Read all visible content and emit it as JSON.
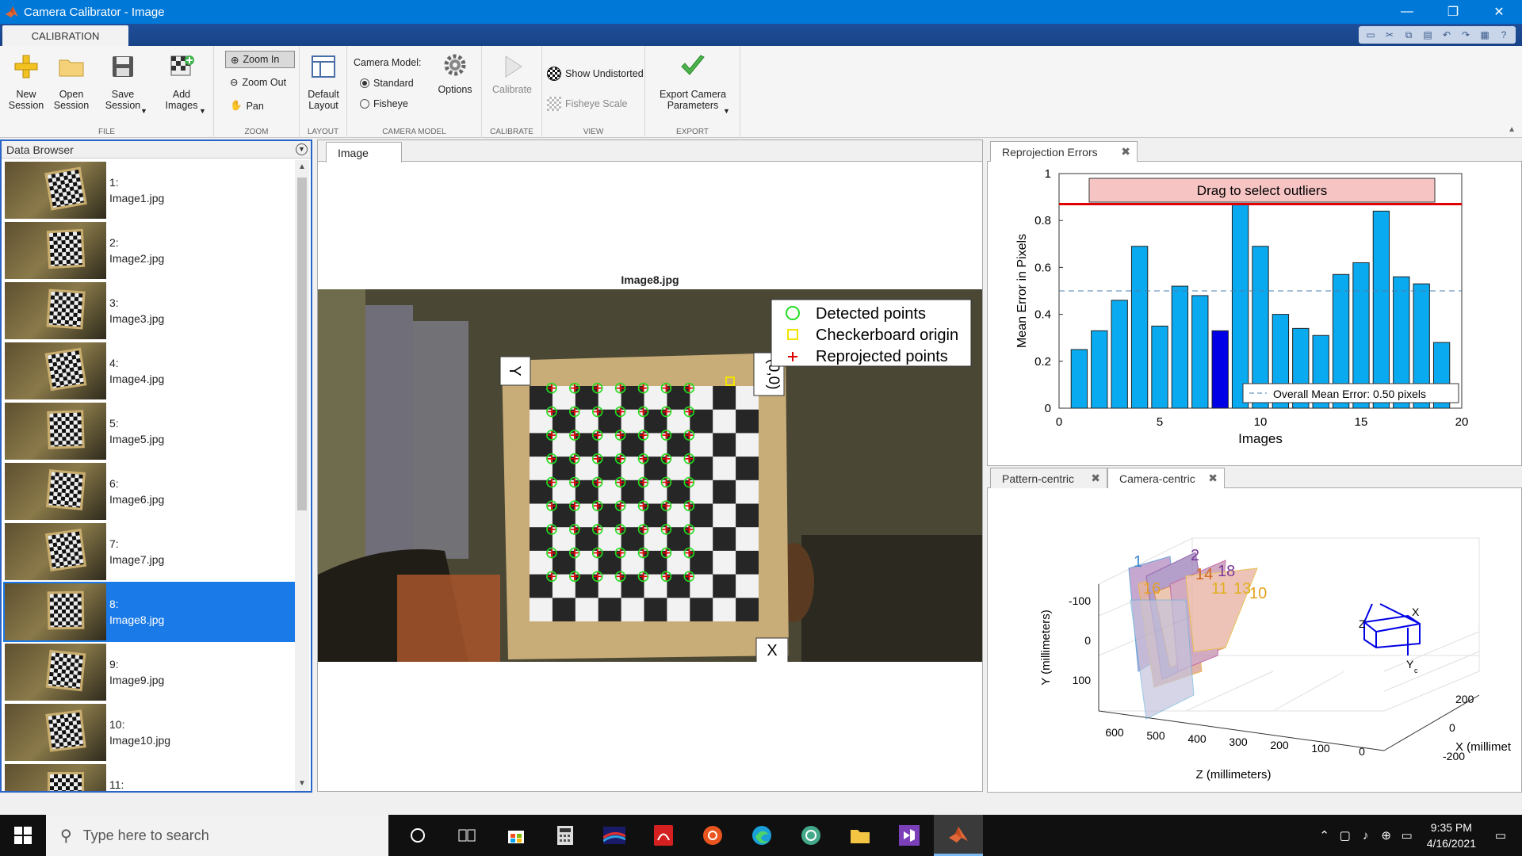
{
  "window": {
    "title": "Camera Calibrator - Image",
    "minimize": "—",
    "restore": "❐",
    "close": "✕"
  },
  "ribbon_tab": "CALIBRATION",
  "ribbon": {
    "file": {
      "label": "FILE",
      "new_session": [
        "New",
        "Session"
      ],
      "open_session": [
        "Open",
        "Session"
      ],
      "save_session": [
        "Save",
        "Session"
      ],
      "add_images": [
        "Add",
        "Images"
      ]
    },
    "zoom": {
      "label": "ZOOM",
      "zoom_in": "Zoom In",
      "zoom_out": "Zoom Out",
      "pan": "Pan"
    },
    "layout": {
      "label": "LAYOUT",
      "default_layout": [
        "Default",
        "Layout"
      ]
    },
    "camera_model": {
      "label": "CAMERA MODEL",
      "title": "Camera Model:",
      "standard": "Standard",
      "fisheye": "Fisheye",
      "options": "Options"
    },
    "calibrate": {
      "label": "CALIBRATE",
      "calibrate": "Calibrate"
    },
    "view": {
      "label": "VIEW",
      "show_undistorted": "Show Undistorted",
      "fisheye_scale": "Fisheye Scale"
    },
    "export": {
      "label": "EXPORT",
      "export_params": [
        "Export Camera",
        "Parameters"
      ]
    }
  },
  "data_browser": {
    "title": "Data Browser",
    "items": [
      {
        "index": "1:",
        "file": "Image1.jpg"
      },
      {
        "index": "2:",
        "file": "Image2.jpg"
      },
      {
        "index": "3:",
        "file": "Image3.jpg"
      },
      {
        "index": "4:",
        "file": "Image4.jpg"
      },
      {
        "index": "5:",
        "file": "Image5.jpg"
      },
      {
        "index": "6:",
        "file": "Image6.jpg"
      },
      {
        "index": "7:",
        "file": "Image7.jpg"
      },
      {
        "index": "8:",
        "file": "Image8.jpg"
      },
      {
        "index": "9:",
        "file": "Image9.jpg"
      },
      {
        "index": "10:",
        "file": "Image10.jpg"
      },
      {
        "index": "11:",
        "file": ""
      }
    ],
    "selected_index": 7
  },
  "image_panel": {
    "tab": "Image",
    "title": "Image8.jpg",
    "legend": [
      "Detected points",
      "Checkerboard origin",
      "Reprojected points"
    ],
    "axis_y_label": "Y",
    "axis_x_label": "X",
    "origin_label": "(0,0)"
  },
  "reprojection": {
    "tab": "Reprojection Errors",
    "tab_close": "✖",
    "outlier_label": "Drag to select outliers",
    "mean_label": "Overall Mean Error: 0.50 pixels"
  },
  "chart_data": {
    "type": "bar",
    "categories": [
      "1",
      "2",
      "3",
      "4",
      "5",
      "6",
      "7",
      "8",
      "9",
      "10",
      "11",
      "12",
      "13",
      "14",
      "15",
      "16",
      "17",
      "18",
      "19"
    ],
    "values": [
      0.25,
      0.33,
      0.46,
      0.69,
      0.35,
      0.52,
      0.48,
      0.33,
      0.87,
      0.69,
      0.4,
      0.34,
      0.31,
      0.57,
      0.62,
      0.84,
      0.56,
      0.53,
      0.28
    ],
    "highlighted_category": "8",
    "mean": 0.5,
    "outlier_threshold": 0.87,
    "xlabel": "Images",
    "ylabel": "Mean Error in Pixels",
    "xlim": [
      0,
      20
    ],
    "ylim": [
      0,
      1
    ],
    "xticks": [
      0,
      5,
      10,
      15,
      20
    ],
    "yticks": [
      0,
      0.2,
      0.4,
      0.6,
      0.8,
      1
    ],
    "colors": {
      "bar": "#0aaaf0",
      "highlight": "#0000e6",
      "threshold": "#e00000",
      "mean": "#4a7fb0"
    }
  },
  "camera_view": {
    "tabs": [
      "Pattern-centric",
      "Camera-centric"
    ],
    "active_tab": 1,
    "tab_close": "✖",
    "ylabel": "Y (millimeters)",
    "zlabel": "Z (millimeters)",
    "xlabel": "X (millimet",
    "y_ticks": [
      "-100",
      "0",
      "100"
    ],
    "z_ticks": [
      "600",
      "500",
      "400",
      "300",
      "200",
      "100",
      "0"
    ],
    "x_ticks": [
      "200",
      "0",
      "-200"
    ],
    "pattern_labels": [
      "1",
      "2",
      "16",
      "14",
      "18",
      "11",
      "10",
      "13"
    ],
    "camera_axis_x": "X",
    "camera_axis_y": "Y",
    "camera_axis_z": "Z",
    "camera_sub": "c"
  },
  "taskbar": {
    "search_placeholder": "Type here to search",
    "time": "9:35 PM",
    "date": "4/16/2021"
  }
}
